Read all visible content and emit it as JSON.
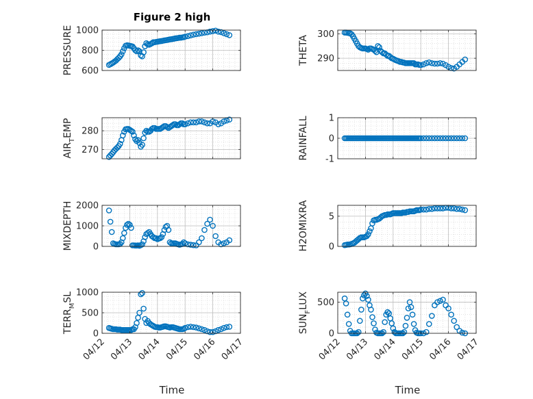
{
  "figure": {
    "title": "Figure 2 high",
    "xlabel": "Time",
    "marker_color": "#0072BD"
  },
  "chart_data": [
    {
      "type": "scatter",
      "name": "pressure",
      "ylabel": "PRESSURE",
      "ylim": [
        600,
        1000
      ],
      "yticks": [
        600,
        800,
        1000
      ],
      "xlim": [
        0,
        5
      ],
      "xticks": [
        "04/12",
        "04/13",
        "04/14",
        "04/15",
        "04/16",
        "04/17"
      ],
      "xticks_visible": false,
      "x": [
        0.25,
        0.3,
        0.35,
        0.4,
        0.45,
        0.5,
        0.55,
        0.6,
        0.65,
        0.7,
        0.75,
        0.8,
        0.85,
        0.9,
        0.95,
        1.0,
        1.05,
        1.1,
        1.15,
        1.2,
        1.25,
        1.3,
        1.35,
        1.4,
        1.45,
        1.5,
        1.55,
        1.6,
        1.65,
        1.7,
        1.75,
        1.8,
        1.85,
        1.9,
        1.95,
        2.0,
        2.05,
        2.1,
        2.15,
        2.2,
        2.25,
        2.3,
        2.35,
        2.4,
        2.45,
        2.5,
        2.55,
        2.6,
        2.65,
        2.7,
        2.75,
        2.8,
        2.85,
        2.9,
        2.95,
        3.0,
        3.1,
        3.2,
        3.3,
        3.4,
        3.5,
        3.6,
        3.7,
        3.8,
        3.9,
        4.0,
        4.1,
        4.2,
        4.3,
        4.4,
        4.5,
        4.6
      ],
      "y": [
        655,
        662,
        670,
        678,
        688,
        698,
        712,
        725,
        740,
        760,
        790,
        820,
        845,
        850,
        848,
        845,
        842,
        838,
        820,
        800,
        790,
        800,
        790,
        750,
        740,
        780,
        840,
        870,
        860,
        855,
        862,
        870,
        880,
        880,
        883,
        885,
        888,
        890,
        892,
        895,
        898,
        900,
        902,
        905,
        908,
        910,
        912,
        915,
        918,
        920,
        922,
        925,
        925,
        928,
        930,
        935,
        940,
        948,
        955,
        960,
        965,
        970,
        975,
        978,
        985,
        990,
        995,
        985,
        980,
        970,
        960,
        950
      ]
    },
    {
      "type": "scatter",
      "name": "theta",
      "ylabel": "THETA",
      "ylim": [
        285,
        301.5
      ],
      "yticks": [
        290,
        300
      ],
      "xlim": [
        0,
        5
      ],
      "xticks": [
        "04/12",
        "04/13",
        "04/14",
        "04/15",
        "04/16",
        "04/17"
      ],
      "xticks_visible": false,
      "x": [
        0.25,
        0.3,
        0.35,
        0.4,
        0.45,
        0.5,
        0.55,
        0.6,
        0.65,
        0.7,
        0.75,
        0.8,
        0.85,
        0.9,
        0.95,
        1.0,
        1.05,
        1.1,
        1.15,
        1.2,
        1.25,
        1.3,
        1.35,
        1.4,
        1.45,
        1.5,
        1.55,
        1.6,
        1.65,
        1.7,
        1.75,
        1.8,
        1.85,
        1.9,
        1.95,
        2.0,
        2.05,
        2.1,
        2.15,
        2.2,
        2.25,
        2.3,
        2.35,
        2.4,
        2.45,
        2.5,
        2.55,
        2.6,
        2.65,
        2.7,
        2.75,
        2.8,
        2.85,
        2.9,
        2.95,
        3.0,
        3.1,
        3.2,
        3.3,
        3.4,
        3.5,
        3.6,
        3.7,
        3.8,
        3.9,
        4.0,
        4.1,
        4.2,
        4.3,
        4.4,
        4.5,
        4.6
      ],
      "y": [
        300.5,
        300.5,
        300.4,
        300.3,
        300.2,
        299.8,
        299,
        298,
        297,
        296,
        295,
        294.5,
        294.2,
        294,
        294,
        294,
        293.8,
        293.5,
        294,
        294,
        293.8,
        293.5,
        293,
        292.5,
        295,
        294.5,
        293,
        292.5,
        292,
        292,
        291.5,
        291,
        291,
        290.5,
        290,
        289.8,
        289.5,
        289.2,
        289,
        288.8,
        288.5,
        288.5,
        288.3,
        288.2,
        288,
        288,
        288,
        288,
        288,
        288,
        288,
        287.5,
        287.5,
        287.5,
        287.3,
        287.2,
        287.5,
        288,
        288.3,
        288,
        287.8,
        287.8,
        288,
        287.8,
        287.2,
        286.5,
        286,
        285.8,
        286.5,
        287.5,
        288.5,
        289.5
      ]
    },
    {
      "type": "scatter",
      "name": "air_temp",
      "ylabel": "AIR",
      "ylabel_sub": "T",
      "ylabel_tail": "EMP",
      "ylim": [
        265,
        287
      ],
      "yticks": [
        270,
        280
      ],
      "xlim": [
        0,
        5
      ],
      "xticks": [
        "04/12",
        "04/13",
        "04/14",
        "04/15",
        "04/16",
        "04/17"
      ],
      "xticks_visible": false,
      "x": [
        0.25,
        0.3,
        0.35,
        0.4,
        0.45,
        0.5,
        0.55,
        0.6,
        0.65,
        0.7,
        0.75,
        0.8,
        0.85,
        0.9,
        0.95,
        1.0,
        1.05,
        1.1,
        1.15,
        1.2,
        1.25,
        1.3,
        1.35,
        1.4,
        1.45,
        1.5,
        1.55,
        1.6,
        1.65,
        1.7,
        1.75,
        1.8,
        1.85,
        1.9,
        1.95,
        2.0,
        2.05,
        2.1,
        2.15,
        2.2,
        2.25,
        2.3,
        2.35,
        2.4,
        2.45,
        2.5,
        2.55,
        2.6,
        2.65,
        2.7,
        2.75,
        2.8,
        2.85,
        2.9,
        2.95,
        3.0,
        3.1,
        3.2,
        3.3,
        3.4,
        3.5,
        3.6,
        3.7,
        3.8,
        3.9,
        4.0,
        4.1,
        4.2,
        4.3,
        4.4,
        4.5,
        4.6
      ],
      "y": [
        266,
        266.8,
        267.6,
        268.5,
        269.5,
        270.3,
        271,
        271.8,
        273,
        275,
        277.5,
        279.5,
        280.8,
        281,
        281,
        280.5,
        280,
        279.5,
        277.5,
        275.5,
        274.5,
        275,
        273.5,
        271.5,
        272.5,
        276,
        279,
        280,
        279.5,
        279.5,
        280,
        281,
        281.5,
        281.5,
        281,
        281,
        281,
        281,
        281.5,
        282,
        282.5,
        282.5,
        282,
        281.5,
        282,
        282.5,
        283,
        283.5,
        283.5,
        283,
        283,
        283.5,
        284,
        284,
        283.5,
        283.5,
        284,
        284.5,
        284.5,
        284.5,
        285,
        285,
        284.5,
        284,
        284,
        285,
        284.5,
        283.5,
        284,
        285,
        285.5,
        286
      ]
    },
    {
      "type": "scatter",
      "name": "rainfall",
      "ylabel": "RAINFALL",
      "ylim": [
        -1,
        1
      ],
      "yticks": [
        -1,
        0,
        1
      ],
      "xlim": [
        0,
        5
      ],
      "xticks": [
        "04/12",
        "04/13",
        "04/14",
        "04/15",
        "04/16",
        "04/17"
      ],
      "xticks_visible": false,
      "x": [
        0.25,
        0.3,
        0.35,
        0.4,
        0.45,
        0.5,
        0.55,
        0.6,
        0.65,
        0.7,
        0.75,
        0.8,
        0.85,
        0.9,
        0.95,
        1.0,
        1.05,
        1.1,
        1.15,
        1.2,
        1.25,
        1.3,
        1.35,
        1.4,
        1.45,
        1.5,
        1.55,
        1.6,
        1.65,
        1.7,
        1.75,
        1.8,
        1.85,
        1.9,
        1.95,
        2.0,
        2.05,
        2.1,
        2.15,
        2.2,
        2.25,
        2.3,
        2.35,
        2.4,
        2.45,
        2.5,
        2.55,
        2.6,
        2.65,
        2.7,
        2.75,
        2.8,
        2.85,
        2.9,
        2.95,
        3.0,
        3.1,
        3.2,
        3.3,
        3.4,
        3.5,
        3.6,
        3.7,
        3.8,
        3.9,
        4.0,
        4.1,
        4.2,
        4.3,
        4.4,
        4.5,
        4.6
      ],
      "y": [
        0,
        0,
        0,
        0,
        0,
        0,
        0,
        0,
        0,
        0,
        0,
        0,
        0,
        0,
        0,
        0,
        0,
        0,
        0,
        0,
        0,
        0,
        0,
        0,
        0,
        0,
        0,
        0,
        0,
        0,
        0,
        0,
        0,
        0,
        0,
        0,
        0,
        0,
        0,
        0,
        0,
        0,
        0,
        0,
        0,
        0,
        0,
        0,
        0,
        0,
        0,
        0,
        0,
        0,
        0,
        0,
        0,
        0,
        0,
        0,
        0,
        0,
        0,
        0,
        0,
        0,
        0,
        0,
        0,
        0,
        0,
        0
      ]
    },
    {
      "type": "scatter",
      "name": "mixdepth",
      "ylabel": "MIXDEPTH",
      "ylim": [
        0,
        2000
      ],
      "yticks": [
        0,
        1000,
        2000
      ],
      "xlim": [
        0,
        5
      ],
      "xticks": [
        "04/12",
        "04/13",
        "04/14",
        "04/15",
        "04/16",
        "04/17"
      ],
      "xticks_visible": false,
      "x": [
        0.25,
        0.3,
        0.35,
        0.4,
        0.45,
        0.5,
        0.55,
        0.6,
        0.65,
        0.7,
        0.75,
        0.8,
        0.85,
        0.9,
        0.95,
        1.0,
        1.05,
        1.1,
        1.15,
        1.2,
        1.25,
        1.3,
        1.35,
        1.4,
        1.45,
        1.5,
        1.55,
        1.6,
        1.65,
        1.7,
        1.75,
        1.8,
        1.85,
        1.9,
        1.95,
        2.0,
        2.05,
        2.1,
        2.15,
        2.2,
        2.25,
        2.3,
        2.35,
        2.4,
        2.45,
        2.5,
        2.55,
        2.6,
        2.65,
        2.7,
        2.75,
        2.8,
        2.85,
        2.9,
        2.95,
        3.0,
        3.1,
        3.2,
        3.3,
        3.4,
        3.5,
        3.6,
        3.7,
        3.8,
        3.9,
        4.0,
        4.1,
        4.2,
        4.3,
        4.4,
        4.5,
        4.6
      ],
      "y": [
        1750,
        1200,
        700,
        150,
        120,
        100,
        100,
        100,
        120,
        200,
        400,
        650,
        900,
        1050,
        1100,
        1050,
        900,
        50,
        50,
        40,
        40,
        50,
        30,
        60,
        100,
        250,
        450,
        600,
        650,
        700,
        600,
        500,
        450,
        400,
        400,
        350,
        380,
        400,
        450,
        600,
        800,
        950,
        1000,
        800,
        200,
        150,
        150,
        150,
        150,
        120,
        100,
        80,
        100,
        120,
        200,
        150,
        100,
        80,
        60,
        50,
        200,
        400,
        800,
        1100,
        1300,
        1000,
        500,
        200,
        100,
        150,
        200,
        300
      ]
    },
    {
      "type": "scatter",
      "name": "h2omixra",
      "ylabel": "H2OMIXRA",
      "ylim": [
        0,
        6.8
      ],
      "yticks": [
        0,
        5
      ],
      "xlim": [
        0,
        5
      ],
      "xticks": [
        "04/12",
        "04/13",
        "04/14",
        "04/15",
        "04/16",
        "04/17"
      ],
      "xticks_visible": false,
      "x": [
        0.25,
        0.3,
        0.35,
        0.4,
        0.45,
        0.5,
        0.55,
        0.6,
        0.65,
        0.7,
        0.75,
        0.8,
        0.85,
        0.9,
        0.95,
        1.0,
        1.05,
        1.1,
        1.15,
        1.2,
        1.25,
        1.3,
        1.35,
        1.4,
        1.45,
        1.5,
        1.55,
        1.6,
        1.65,
        1.7,
        1.75,
        1.8,
        1.85,
        1.9,
        1.95,
        2.0,
        2.05,
        2.1,
        2.15,
        2.2,
        2.25,
        2.3,
        2.35,
        2.4,
        2.45,
        2.5,
        2.55,
        2.6,
        2.65,
        2.7,
        2.75,
        2.8,
        2.85,
        2.9,
        2.95,
        3.0,
        3.1,
        3.2,
        3.3,
        3.4,
        3.5,
        3.6,
        3.7,
        3.8,
        3.9,
        4.0,
        4.1,
        4.2,
        4.3,
        4.4,
        4.5,
        4.6
      ],
      "y": [
        0.2,
        0.25,
        0.3,
        0.3,
        0.35,
        0.4,
        0.5,
        0.6,
        0.8,
        1.0,
        1.2,
        1.4,
        1.5,
        1.5,
        1.5,
        1.6,
        1.7,
        2.0,
        2.5,
        3.0,
        3.8,
        4.3,
        4.4,
        4.4,
        4.5,
        4.6,
        4.8,
        5.0,
        5.1,
        5.2,
        5.2,
        5.3,
        5.3,
        5.3,
        5.4,
        5.5,
        5.5,
        5.5,
        5.5,
        5.5,
        5.5,
        5.5,
        5.6,
        5.6,
        5.6,
        5.7,
        5.7,
        5.8,
        5.8,
        5.8,
        5.8,
        5.9,
        6.0,
        6.0,
        6.0,
        6.1,
        6.1,
        6.1,
        6.2,
        6.2,
        6.3,
        6.3,
        6.3,
        6.3,
        6.4,
        6.4,
        6.3,
        6.3,
        6.2,
        6.2,
        6.1,
        6.0
      ]
    },
    {
      "type": "scatter",
      "name": "terr_msl",
      "ylabel": "TERR",
      "ylabel_sub": "M",
      "ylabel_tail": "SL",
      "ylim": [
        0,
        1000
      ],
      "yticks": [
        0,
        500,
        1000
      ],
      "xlim": [
        0,
        5
      ],
      "xticks": [
        "04/12",
        "04/13",
        "04/14",
        "04/15",
        "04/16",
        "04/17"
      ],
      "xticks_visible": true,
      "x": [
        0.25,
        0.3,
        0.35,
        0.4,
        0.45,
        0.5,
        0.55,
        0.6,
        0.65,
        0.7,
        0.75,
        0.8,
        0.85,
        0.9,
        0.95,
        1.0,
        1.05,
        1.1,
        1.15,
        1.2,
        1.25,
        1.3,
        1.35,
        1.4,
        1.45,
        1.5,
        1.55,
        1.6,
        1.65,
        1.7,
        1.75,
        1.8,
        1.85,
        1.9,
        1.95,
        2.0,
        2.05,
        2.1,
        2.15,
        2.2,
        2.25,
        2.3,
        2.35,
        2.4,
        2.45,
        2.5,
        2.55,
        2.6,
        2.65,
        2.7,
        2.75,
        2.8,
        2.85,
        2.9,
        2.95,
        3.0,
        3.1,
        3.2,
        3.3,
        3.4,
        3.5,
        3.6,
        3.7,
        3.8,
        3.9,
        4.0,
        4.1,
        4.2,
        4.3,
        4.4,
        4.5,
        4.6
      ],
      "y": [
        130,
        120,
        110,
        100,
        100,
        100,
        90,
        90,
        90,
        80,
        80,
        80,
        80,
        80,
        80,
        80,
        80,
        100,
        100,
        150,
        250,
        380,
        500,
        950,
        980,
        600,
        350,
        250,
        300,
        250,
        220,
        200,
        180,
        160,
        150,
        150,
        140,
        140,
        150,
        160,
        170,
        170,
        160,
        150,
        140,
        150,
        150,
        140,
        130,
        120,
        110,
        100,
        100,
        100,
        110,
        130,
        150,
        160,
        150,
        140,
        120,
        100,
        80,
        50,
        30,
        30,
        50,
        80,
        100,
        130,
        150,
        160
      ]
    },
    {
      "type": "scatter",
      "name": "sun_flux",
      "ylabel": "SUN",
      "ylabel_sub": "F",
      "ylabel_tail": "LUX",
      "ylim": [
        0,
        660
      ],
      "yticks": [
        0,
        500
      ],
      "xlim": [
        0,
        5
      ],
      "xticks": [
        "04/12",
        "04/13",
        "04/14",
        "04/15",
        "04/16",
        "04/17"
      ],
      "xticks_visible": true,
      "x": [
        0.25,
        0.3,
        0.35,
        0.4,
        0.45,
        0.5,
        0.55,
        0.6,
        0.65,
        0.7,
        0.75,
        0.8,
        0.85,
        0.9,
        0.95,
        1.0,
        1.05,
        1.1,
        1.15,
        1.2,
        1.25,
        1.3,
        1.35,
        1.4,
        1.45,
        1.5,
        1.55,
        1.6,
        1.65,
        1.7,
        1.75,
        1.8,
        1.85,
        1.9,
        1.95,
        2.0,
        2.05,
        2.1,
        2.15,
        2.2,
        2.25,
        2.3,
        2.35,
        2.4,
        2.45,
        2.5,
        2.55,
        2.6,
        2.65,
        2.7,
        2.75,
        2.8,
        2.85,
        2.9,
        2.95,
        3.0,
        3.1,
        3.2,
        3.3,
        3.4,
        3.5,
        3.6,
        3.7,
        3.8,
        3.9,
        4.0,
        4.1,
        4.2,
        4.3,
        4.4,
        4.5,
        4.6
      ],
      "y": [
        560,
        480,
        300,
        150,
        40,
        0,
        0,
        0,
        0,
        0,
        20,
        200,
        380,
        560,
        610,
        640,
        600,
        540,
        450,
        380,
        260,
        160,
        60,
        10,
        0,
        0,
        0,
        0,
        20,
        180,
        300,
        340,
        320,
        240,
        160,
        80,
        20,
        0,
        0,
        0,
        0,
        0,
        0,
        20,
        120,
        250,
        400,
        500,
        420,
        300,
        150,
        50,
        10,
        0,
        0,
        0,
        0,
        20,
        150,
        280,
        450,
        500,
        520,
        540,
        450,
        400,
        300,
        200,
        100,
        40,
        10,
        0
      ]
    }
  ]
}
